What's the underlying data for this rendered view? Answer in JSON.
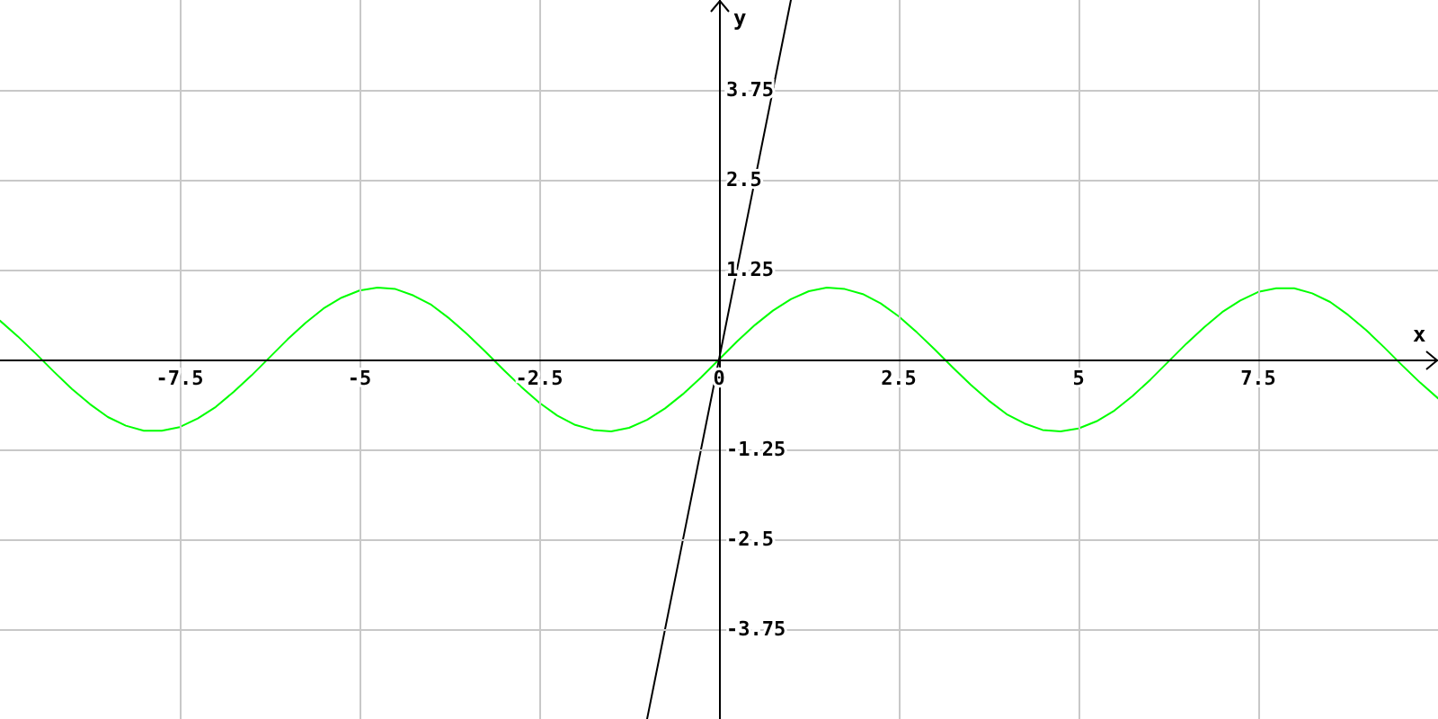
{
  "chart_data": {
    "type": "line",
    "xlabel": "x",
    "ylabel": "y",
    "xlim": [
      -10,
      10
    ],
    "ylim": [
      -5,
      5
    ],
    "xticks": [
      -7.5,
      -5,
      -2.5,
      0,
      2.5,
      5,
      7.5
    ],
    "yticks": [
      -3.75,
      -2.5,
      -1.25,
      1.25,
      2.5,
      3.75
    ],
    "grid": true,
    "marker": "none",
    "line_style": "solid",
    "series": [
      {
        "color": "#00ff00",
        "x": [
          -10,
          -9.75,
          -9.5,
          -9.25,
          -9,
          -8.75,
          -8.5,
          -8.25,
          -8,
          -7.75,
          -7.5,
          -7.25,
          -7,
          -6.75,
          -6.5,
          -6.25,
          -6,
          -5.75,
          -5.5,
          -5.25,
          -5,
          -4.75,
          -4.5,
          -4.25,
          -4,
          -3.75,
          -3.5,
          -3.25,
          -3,
          -2.75,
          -2.5,
          -2.25,
          -2,
          -1.75,
          -1.5,
          -1.25,
          -1,
          -0.75,
          -0.5,
          -0.25,
          0,
          0.25,
          0.5,
          0.75,
          1,
          1.25,
          1.5,
          1.75,
          2,
          2.25,
          2.5,
          2.75,
          3,
          3.25,
          3.5,
          3.75,
          4,
          4.25,
          4.5,
          4.75,
          5,
          5.25,
          5.5,
          5.75,
          6,
          6.25,
          6.5,
          6.75,
          7,
          7.25,
          7.5,
          7.75,
          8,
          8.25,
          8.5,
          8.75,
          9,
          9.25,
          9.5,
          9.75,
          10
        ],
        "values": [
          0.54,
          0.32,
          0.08,
          -0.17,
          -0.41,
          -0.62,
          -0.8,
          -0.92,
          -0.99,
          -0.99,
          -0.94,
          -0.82,
          -0.66,
          -0.45,
          -0.22,
          0.03,
          0.28,
          0.51,
          0.71,
          0.86,
          0.96,
          1.0,
          0.98,
          0.89,
          0.76,
          0.57,
          0.35,
          0.11,
          -0.14,
          -0.38,
          -0.6,
          -0.78,
          -0.91,
          -0.98,
          -1.0,
          -0.95,
          -0.84,
          -0.68,
          -0.48,
          -0.25,
          0,
          0.25,
          0.48,
          0.68,
          0.84,
          0.95,
          1.0,
          0.98,
          0.91,
          0.78,
          0.6,
          0.38,
          0.14,
          -0.11,
          -0.35,
          -0.57,
          -0.76,
          -0.89,
          -0.98,
          -1.0,
          -0.96,
          -0.86,
          -0.71,
          -0.51,
          -0.28,
          -0.03,
          0.22,
          0.45,
          0.66,
          0.82,
          0.94,
          0.99,
          0.99,
          0.92,
          0.8,
          0.62,
          0.41,
          0.17,
          -0.08,
          -0.32,
          -0.54
        ]
      },
      {
        "color": "#000000",
        "x": [
          -1,
          1
        ],
        "values": [
          -5,
          5
        ]
      }
    ]
  }
}
